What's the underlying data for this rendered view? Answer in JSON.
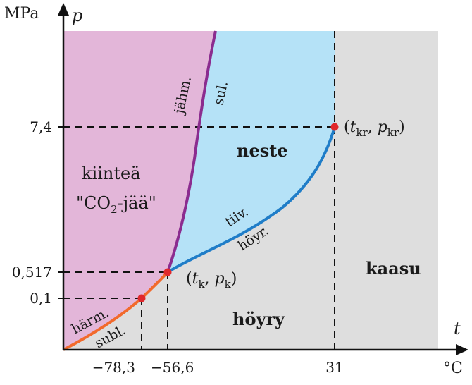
{
  "axes": {
    "y_unit": "MPa",
    "y_var": "p",
    "x_var": "t",
    "x_unit": "°C"
  },
  "y_ticks": [
    "7,4",
    "0,517",
    "0,1"
  ],
  "x_ticks": [
    "−78,3",
    "−56,6",
    "31"
  ],
  "regions": {
    "solid_line1": "kiinteä",
    "solid_line2_pre": "\"CO",
    "solid_line2_sub": "2",
    "solid_line2_post": "-jää\"",
    "liquid": "neste",
    "vapour": "höyry",
    "gas": "kaasu"
  },
  "curves": {
    "melting_left": "jähm.",
    "melting_right": "sul.",
    "vaporization_upper": "tiiv.",
    "vaporization_lower": "höyr.",
    "sublimation_upper": "härm.",
    "sublimation_lower": "subl."
  },
  "points": {
    "critical": {
      "open": "(",
      "t": "t",
      "t_sub": "kr",
      "sep": ", ",
      "p": "p",
      "p_sub": "kr",
      "close": ")"
    },
    "triple": {
      "open": "(",
      "t": "t",
      "t_sub": "k",
      "sep": ", ",
      "p": "p",
      "p_sub": "k",
      "close": ")"
    }
  },
  "colors": {
    "solid": "#e3b6d9",
    "liquid": "#b5e2f7",
    "gas": "#dedede",
    "melting_curve": "#8b2c8f",
    "vaporization_curve": "#1f7dc8",
    "sublimation_curve": "#f26a2c",
    "marker": "#e0282c"
  }
}
